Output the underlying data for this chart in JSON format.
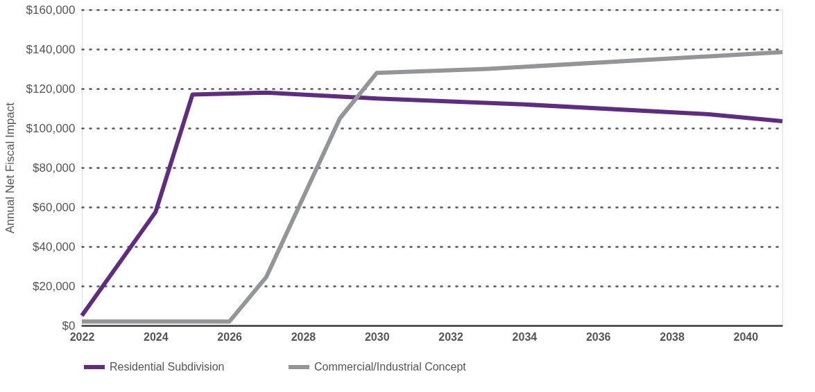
{
  "chart_data": {
    "type": "line",
    "ylabel": "Annual Net Fiscal Impact",
    "xlim": [
      2022,
      2041
    ],
    "xticks": [
      2022,
      2024,
      2026,
      2028,
      2030,
      2032,
      2034,
      2036,
      2038,
      2040
    ],
    "ylim": [
      0,
      160000
    ],
    "yticks": [
      {
        "value": 0,
        "label": "$0"
      },
      {
        "value": 20000,
        "label": "$20,000"
      },
      {
        "value": 40000,
        "label": "$40,000"
      },
      {
        "value": 60000,
        "label": "$60,000"
      },
      {
        "value": 80000,
        "label": "$80,000"
      },
      {
        "value": 100000,
        "label": "$100,000"
      },
      {
        "value": 120000,
        "label": "$120,000"
      },
      {
        "value": 140000,
        "label": "$140,000"
      },
      {
        "value": 160000,
        "label": "$160,000"
      }
    ],
    "grid": "y",
    "legend": "bottom",
    "marker": "none",
    "line_style": "solid",
    "series": [
      {
        "name": "Residential Subdivision",
        "color": "#5f2c82",
        "x": [
          2022,
          2024,
          2025,
          2027,
          2030,
          2034,
          2039,
          2041
        ],
        "values": [
          5000,
          57500,
          117000,
          118000,
          115000,
          112000,
          107000,
          103500
        ]
      },
      {
        "name": "Commercial/Industrial Concept",
        "color": "#939598",
        "x": [
          2022,
          2026,
          2027,
          2029,
          2030,
          2033,
          2041
        ],
        "values": [
          2000,
          2000,
          24500,
          105000,
          128000,
          130000,
          138500
        ]
      }
    ]
  }
}
